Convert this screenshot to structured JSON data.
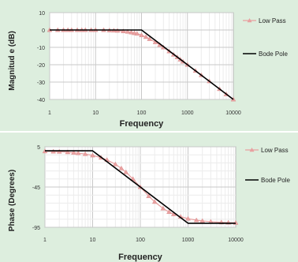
{
  "chart_data": [
    {
      "type": "line",
      "xlabel": "Frequency",
      "ylabel": "Magnitud e (dB)",
      "xscale": "log",
      "xlim": [
        1,
        10000
      ],
      "ylim": [
        -40,
        10
      ],
      "x_ticks": [
        "1",
        "10",
        "100",
        "1000",
        "10000"
      ],
      "y_ticks": [
        "10",
        "0",
        "-10",
        "-20",
        "-30",
        "-40"
      ],
      "grid": true,
      "legend_position": "right",
      "series": [
        {
          "name": "Low Pass",
          "color": "#e8a0a0",
          "marker": "triangle",
          "x": [
            1,
            1.5,
            2,
            2.5,
            3,
            4,
            5,
            6,
            8,
            10,
            15,
            20,
            25,
            30,
            40,
            50,
            60,
            70,
            80,
            100,
            125,
            150,
            200,
            250,
            300,
            400,
            500,
            600,
            700,
            800,
            1000,
            1500,
            2000,
            3000,
            5000,
            7000,
            10000
          ],
          "y": [
            0,
            0,
            0,
            0,
            0,
            0,
            0,
            0,
            0,
            0,
            0,
            -0.2,
            -0.3,
            -0.4,
            -0.7,
            -1,
            -1.4,
            -1.8,
            -2.1,
            -3,
            -4,
            -5.2,
            -7,
            -8.6,
            -10,
            -12.3,
            -14.2,
            -15.7,
            -17,
            -18.2,
            -20,
            -23.5,
            -26,
            -29.5,
            -34,
            -37,
            -40
          ]
        },
        {
          "name": "Bode Pole",
          "color": "#000000",
          "x": [
            1,
            100,
            10000
          ],
          "y": [
            0,
            0,
            -40
          ]
        }
      ]
    },
    {
      "type": "line",
      "xlabel": "Frequency",
      "ylabel": "Phase (Degrees)",
      "xscale": "log",
      "xlim": [
        1,
        10000
      ],
      "ylim": [
        -95,
        5
      ],
      "x_ticks": [
        "1",
        "10",
        "100",
        "1000",
        "10000"
      ],
      "y_ticks": [
        "5",
        "-45",
        "-95"
      ],
      "grid": true,
      "legend_position": "right",
      "series": [
        {
          "name": "Low Pass",
          "color": "#e8a0a0",
          "marker": "triangle",
          "x": [
            1,
            1.5,
            2,
            3,
            4,
            5,
            7,
            10,
            15,
            20,
            30,
            40,
            50,
            70,
            100,
            150,
            200,
            300,
            400,
            500,
            700,
            1000,
            1500,
            2000,
            3000,
            5000,
            7000,
            10000
          ],
          "y": [
            -0.6,
            -0.9,
            -1.1,
            -1.7,
            -2.3,
            -2.9,
            -4,
            -5.7,
            -8.5,
            -11.3,
            -16.7,
            -21.8,
            -26.6,
            -35,
            -45,
            -56.3,
            -63.4,
            -71.6,
            -76,
            -78.7,
            -81.9,
            -84.3,
            -86.2,
            -87.1,
            -88.1,
            -88.9,
            -89.2,
            -89.4
          ]
        },
        {
          "name": "Bode Pole",
          "color": "#000000",
          "x": [
            1,
            10,
            1000,
            10000
          ],
          "y": [
            0,
            0,
            -90,
            -90
          ]
        }
      ]
    }
  ]
}
